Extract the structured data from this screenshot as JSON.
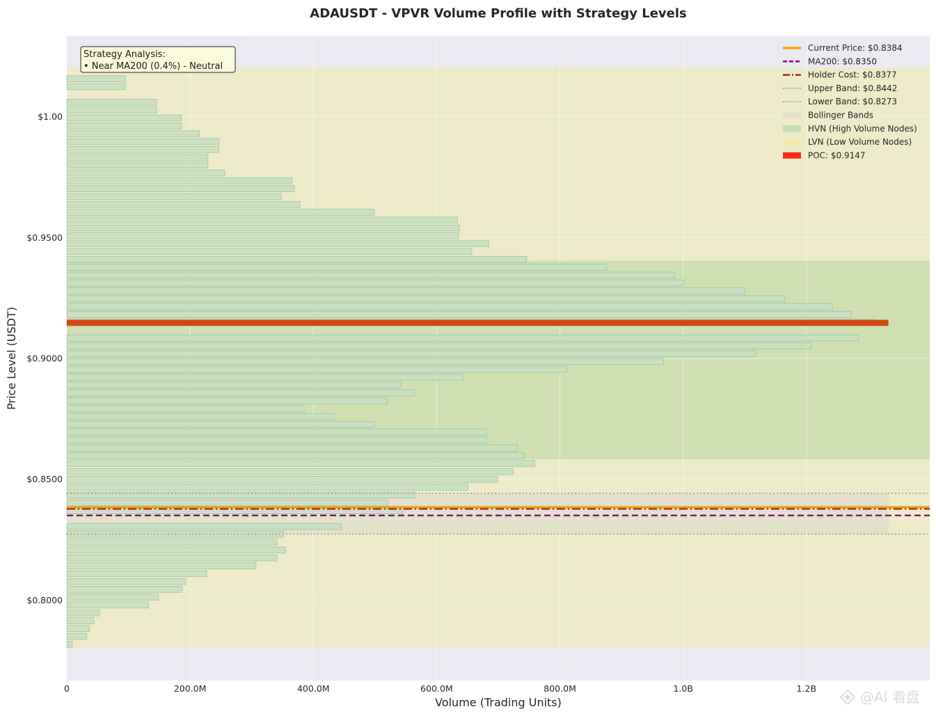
{
  "chart_data": {
    "type": "bar",
    "orientation": "horizontal",
    "title": "ADAUSDT - VPVR Volume Profile with Strategy Levels",
    "xlabel": "Volume (Trading Units)",
    "ylabel": "Price Level (USDT)",
    "xlim": [
      0,
      1400000000
    ],
    "ylim": [
      0.7667,
      1.0333
    ],
    "x_ticks": [
      {
        "value": 0,
        "label": "0"
      },
      {
        "value": 200000000,
        "label": "200.0M"
      },
      {
        "value": 400000000,
        "label": "400.0M"
      },
      {
        "value": 600000000,
        "label": "600.0M"
      },
      {
        "value": 800000000,
        "label": "800.0M"
      },
      {
        "value": 1000000000,
        "label": "1.0B"
      },
      {
        "value": 1200000000,
        "label": "1.2B"
      }
    ],
    "y_ticks": [
      {
        "value": 1.0,
        "label": "$1.00"
      },
      {
        "value": 0.95,
        "label": "$0.9500"
      },
      {
        "value": 0.9,
        "label": "$0.9000"
      },
      {
        "value": 0.85,
        "label": "$0.8500"
      },
      {
        "value": 0.8,
        "label": "$0.8000"
      }
    ],
    "grid": true,
    "legend_position": "top-right",
    "bin_size": 0.00325,
    "bins": {
      "price": [
        1.01894,
        1.01569,
        1.01245,
        1.0092,
        1.00595,
        1.0027,
        0.99945,
        0.9962,
        0.99295,
        0.9897,
        0.98645,
        0.9832,
        0.97995,
        0.9767,
        0.97345,
        0.9702,
        0.96695,
        0.9637,
        0.96045,
        0.9572,
        0.95395,
        0.9507,
        0.94745,
        0.9442,
        0.94095,
        0.9377,
        0.93445,
        0.9312,
        0.92795,
        0.9247,
        0.92145,
        0.9182,
        0.91495,
        0.9117,
        0.90845,
        0.9052,
        0.90195,
        0.8987,
        0.89545,
        0.8922,
        0.88895,
        0.8857,
        0.88245,
        0.8792,
        0.87595,
        0.8727,
        0.86945,
        0.8662,
        0.86295,
        0.8597,
        0.85645,
        0.8532,
        0.84995,
        0.8467,
        0.84345,
        0.8402,
        0.83695,
        0.8337,
        0.83045,
        0.8272,
        0.82395,
        0.8207,
        0.81745,
        0.8142,
        0.81095,
        0.8077,
        0.80445,
        0.8012,
        0.79795,
        0.7947,
        0.79145,
        0.7882,
        0.78495,
        0.7817
      ],
      "volume": [
        0,
        95000000,
        95000000,
        0,
        146000000,
        146000000,
        186000000,
        186000000,
        215000000,
        247000000,
        247000000,
        229000000,
        229000000,
        256000000,
        365000000,
        369000000,
        348000000,
        378000000,
        499000000,
        634000000,
        637000000,
        636000000,
        685000000,
        657000000,
        746000000,
        876000000,
        986000000,
        1001000000,
        1100000000,
        1165000000,
        1242000000,
        1273000000,
        1309000000,
        1333000000,
        1284000000,
        1208000000,
        1118000000,
        968000000,
        811000000,
        644000000,
        542000000,
        564000000,
        520000000,
        385000000,
        434000000,
        499000000,
        681000000,
        683000000,
        731000000,
        741000000,
        759000000,
        724000000,
        699000000,
        651000000,
        564000000,
        521000000,
        545000000,
        0,
        445000000,
        352000000,
        341000000,
        355000000,
        341000000,
        307000000,
        227000000,
        193000000,
        187000000,
        149000000,
        133000000,
        53000000,
        44000000,
        37000000,
        32000000,
        9000000
      ],
      "poc_index": 33
    },
    "hvn_range": [
      0.8582,
      0.9404
    ],
    "lvn_ranges": [
      [
        0.7803,
        0.8582
      ],
      [
        0.9404,
        1.0203
      ]
    ],
    "bollinger_band": [
      0.8273,
      0.8442
    ],
    "levels": {
      "current_price": 0.8384,
      "ma200": 0.835,
      "holder_cost": 0.8377,
      "upper_band": 0.8442,
      "lower_band": 0.8273,
      "poc": 0.9147
    },
    "legend": [
      {
        "label": "Current Price: $0.8384",
        "style": "line",
        "color": "#ffa500"
      },
      {
        "label": "MA200: $0.8350",
        "style": "dashed",
        "color": "#800080"
      },
      {
        "label": "Holder Cost: $0.8377",
        "style": "dashdot",
        "color": "#b22222"
      },
      {
        "label": "Upper Band: $0.8442",
        "style": "dotted",
        "color": "#999999"
      },
      {
        "label": "Lower Band: $0.8273",
        "style": "dotted",
        "color": "#999999"
      },
      {
        "label": "Bollinger Bands",
        "style": "patch",
        "color": "#e0e0c8"
      },
      {
        "label": "HVN (High Volume Nodes)",
        "style": "patch",
        "color": "#bcd9a6"
      },
      {
        "label": "LVN (Low Volume Nodes)",
        "style": "patch",
        "color": "#f1e8a8"
      },
      {
        "label": "POC: $0.9147",
        "style": "patch",
        "color": "#ff2a1a"
      }
    ],
    "annotation": {
      "title": "Strategy Analysis:",
      "line": "• Near MA200 (0.4%) - Neutral"
    }
  },
  "watermark": "@AI 看盘",
  "colors": {
    "plot_bg": "#eaeaf2",
    "bar_fill": "#c8dfc3",
    "bar_edge": "#9dbf9a",
    "lvn_zone": "#edebc9",
    "hvn_zone": "#cfdfb2",
    "poc": "#d44814",
    "current_price": "#f0a020",
    "ma200": "#800080",
    "holder_cost": "#a52a2a",
    "band": "#999999"
  }
}
